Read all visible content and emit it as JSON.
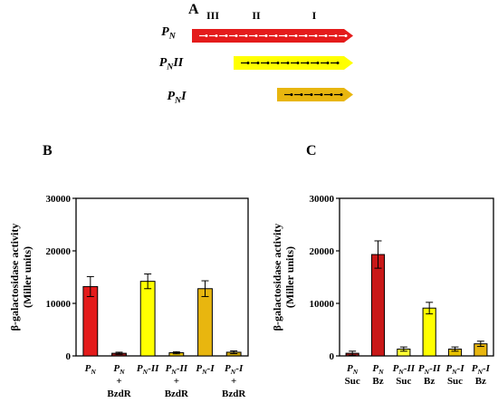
{
  "panels": {
    "a": "A",
    "b": "B",
    "c": "C"
  },
  "diagram": {
    "regions": [
      "III",
      "II",
      "I"
    ],
    "constructs": [
      {
        "main": "P",
        "sub": "N",
        "suffix": "",
        "color": "#e41b1b"
      },
      {
        "main": "P",
        "sub": "N",
        "suffix": "II",
        "color": "#ffff00"
      },
      {
        "main": "P",
        "sub": "N",
        "suffix": "I",
        "color": "#e8b60f"
      }
    ]
  },
  "chart_data": [
    {
      "type": "bar",
      "panel": "B",
      "ylabel_line1": "β-galactosidase activity",
      "ylabel_line2": "(Miller units)",
      "ylim": [
        0,
        30000
      ],
      "yticks": [
        "0",
        "10000",
        "20000",
        "30000"
      ],
      "categories": [
        {
          "main": "P",
          "sub": "N",
          "suffix": "",
          "line2": "",
          "line3": ""
        },
        {
          "main": "P",
          "sub": "N",
          "suffix": "",
          "line2": "+",
          "line3": "BzdR"
        },
        {
          "main": "P",
          "sub": "N",
          "suffix": "-II",
          "line2": "",
          "line3": ""
        },
        {
          "main": "P",
          "sub": "N",
          "suffix": "-II",
          "line2": "+",
          "line3": "BzdR"
        },
        {
          "main": "P",
          "sub": "N",
          "suffix": "-I",
          "line2": "",
          "line3": ""
        },
        {
          "main": "P",
          "sub": "N",
          "suffix": "-I",
          "line2": "+",
          "line3": "BzdR"
        }
      ],
      "values": [
        13200,
        500,
        14200,
        600,
        12800,
        700
      ],
      "errors": [
        1900,
        200,
        1400,
        200,
        1500,
        250
      ],
      "colors": [
        "#e41b1b",
        "#8b1a1a",
        "#ffff00",
        "#e8c200",
        "#e8b60f",
        "#c8a000"
      ]
    },
    {
      "type": "bar",
      "panel": "C",
      "ylabel_line1": "β-galactosidase activity",
      "ylabel_line2": "(Miller units)",
      "ylim": [
        0,
        30000
      ],
      "yticks": [
        "0",
        "10000",
        "20000",
        "30000"
      ],
      "categories": [
        {
          "main": "P",
          "sub": "N",
          "suffix": "",
          "line2": "Suc"
        },
        {
          "main": "P",
          "sub": "N",
          "suffix": "",
          "line2": "Bz"
        },
        {
          "main": "P",
          "sub": "N",
          "suffix": "-II",
          "line2": "Suc"
        },
        {
          "main": "P",
          "sub": "N",
          "suffix": "-II",
          "line2": "Bz"
        },
        {
          "main": "P",
          "sub": "N",
          "suffix": "-I",
          "line2": "Suc"
        },
        {
          "main": "P",
          "sub": "N",
          "suffix": "-I",
          "line2": "Bz"
        }
      ],
      "values": [
        500,
        19300,
        1300,
        9100,
        1300,
        2300
      ],
      "errors": [
        400,
        2600,
        400,
        1100,
        400,
        500
      ],
      "colors": [
        "#8b1a1a",
        "#c81818",
        "#ffff33",
        "#ffff00",
        "#e8c200",
        "#e8b60f"
      ]
    }
  ]
}
